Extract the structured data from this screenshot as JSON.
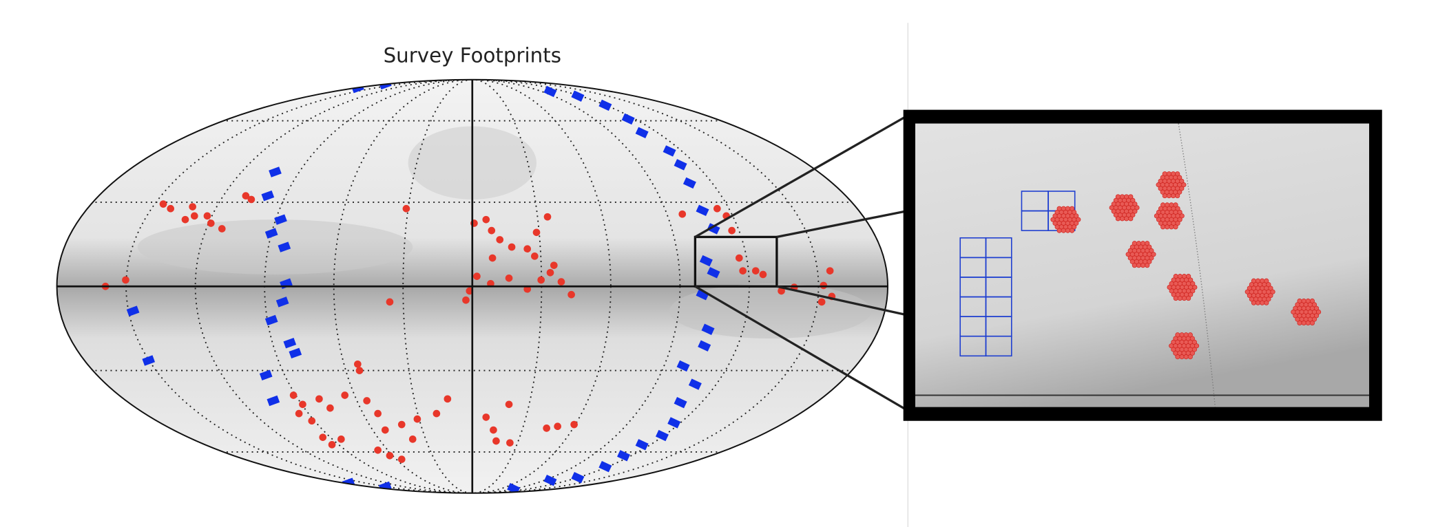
{
  "title": "Survey Footprints"
}
